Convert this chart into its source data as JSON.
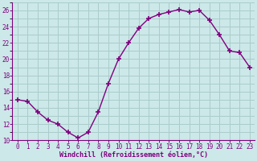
{
  "x": [
    0,
    1,
    2,
    3,
    4,
    5,
    6,
    7,
    8,
    9,
    10,
    11,
    12,
    13,
    14,
    15,
    16,
    17,
    18,
    19,
    20,
    21,
    22,
    23
  ],
  "y": [
    15.0,
    14.8,
    13.5,
    12.5,
    12.0,
    11.0,
    10.3,
    11.0,
    13.5,
    17.0,
    20.0,
    22.0,
    23.8,
    25.0,
    25.5,
    25.8,
    26.1,
    25.8,
    26.0,
    24.8,
    23.0,
    21.0,
    20.8,
    19.0
  ],
  "line_color": "#800080",
  "marker": "+",
  "marker_size": 4,
  "marker_lw": 1.2,
  "bg_color": "#cce8e8",
  "grid_color": "#aacccc",
  "xlabel": "Windchill (Refroidissement éolien,°C)",
  "xlim": [
    -0.5,
    23.5
  ],
  "ylim": [
    10,
    27
  ],
  "yticks": [
    10,
    12,
    14,
    16,
    18,
    20,
    22,
    24,
    26
  ],
  "xticks": [
    0,
    1,
    2,
    3,
    4,
    5,
    6,
    7,
    8,
    9,
    10,
    11,
    12,
    13,
    14,
    15,
    16,
    17,
    18,
    19,
    20,
    21,
    22,
    23
  ],
  "tick_color": "#800080",
  "label_color": "#800080",
  "axis_color": "#800080",
  "tick_fontsize": 5.5,
  "xlabel_fontsize": 6,
  "linewidth": 1.0
}
